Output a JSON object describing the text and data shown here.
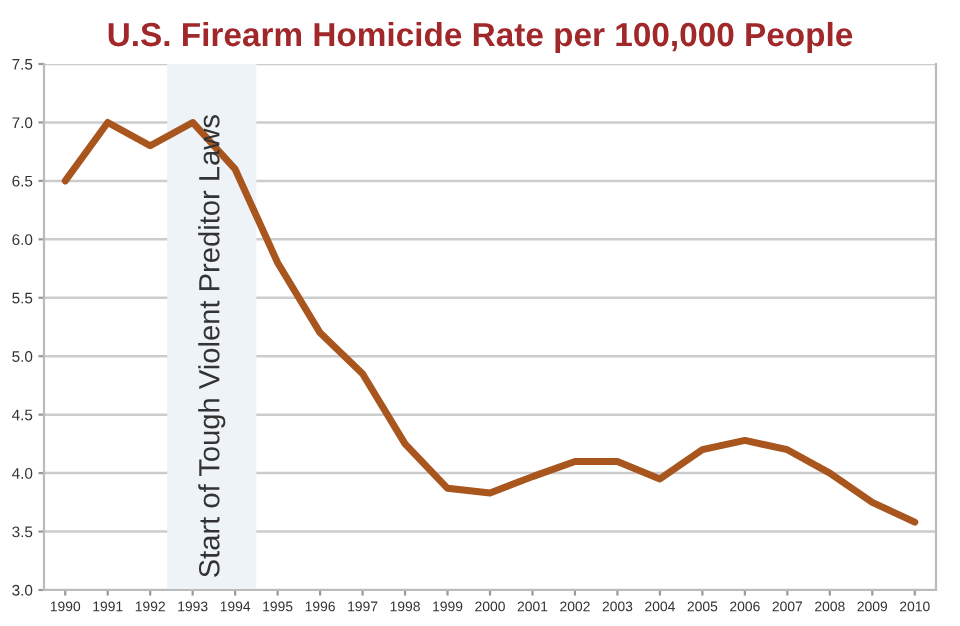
{
  "chart_data": {
    "type": "line",
    "title": "U.S. Firearm Homicide Rate per 100,000 People",
    "categories": [
      "1990",
      "1991",
      "1992",
      "1993",
      "1994",
      "1995",
      "1996",
      "1997",
      "1998",
      "1999",
      "2000",
      "2001",
      "2002",
      "2003",
      "2004",
      "2005",
      "2006",
      "2007",
      "2008",
      "2009",
      "2010"
    ],
    "series": [
      {
        "color": "#a8551e",
        "values": [
          6.5,
          7.0,
          6.8,
          7.0,
          6.6,
          5.8,
          5.2,
          4.85,
          4.25,
          3.87,
          3.83,
          3.97,
          4.1,
          4.1,
          3.95,
          4.2,
          4.28,
          4.2,
          4.0,
          3.75,
          3.58
        ]
      }
    ],
    "ylim": [
      3.0,
      7.5
    ],
    "yticks": [
      {
        "value": 3.0,
        "label": "3.0"
      },
      {
        "value": 3.5,
        "label": "3.5"
      },
      {
        "value": 4.0,
        "label": "4.0"
      },
      {
        "value": 4.5,
        "label": "4.5"
      },
      {
        "value": 5.0,
        "label": "5.0"
      },
      {
        "value": 5.5,
        "label": "5.5"
      },
      {
        "value": 6.0,
        "label": "6.0"
      },
      {
        "value": 6.5,
        "label": "6.5"
      },
      {
        "value": 7.0,
        "label": "7.0"
      },
      {
        "value": 7.5,
        "label": "7.5"
      }
    ],
    "bands": [
      {
        "axis": "x",
        "from": "1993",
        "to": "1994",
        "label": "Start of Tough Violent Preditor Laws",
        "color": "#eef3f8"
      }
    ],
    "grid": "y",
    "marker": "none",
    "line_style": "solid"
  }
}
